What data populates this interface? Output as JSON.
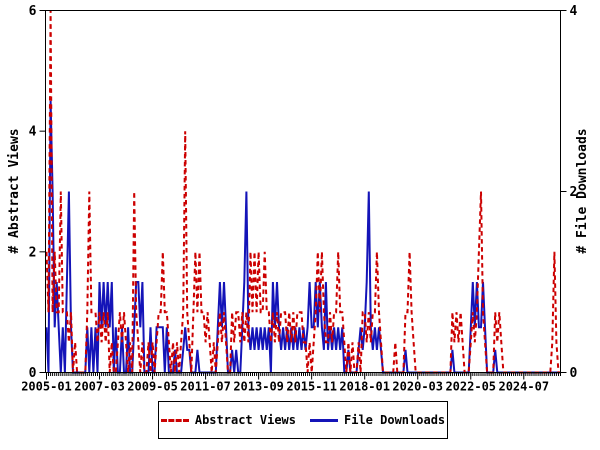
{
  "frame": {
    "background": "#ffffff",
    "axis_color": "#000000"
  },
  "chart_data": {
    "type": "line",
    "title": "",
    "x_axis": {
      "start_month": "2005-01",
      "months_total": 252,
      "major_tick_every": 26,
      "tick_labels": [
        "2005-01",
        "2007-03",
        "2009-05",
        "2011-07",
        "2013-09",
        "2015-11",
        "2018-01",
        "2020-03",
        "2022-05",
        "2024-07"
      ],
      "tick_month_indices": [
        0,
        26,
        52,
        78,
        104,
        130,
        156,
        182,
        208,
        234
      ]
    },
    "left_axis": {
      "label": "# Abstract Views",
      "range": [
        0,
        6
      ],
      "ticks": [
        0,
        2,
        4,
        6
      ]
    },
    "right_axis": {
      "label": "# File Downloads",
      "range": [
        0,
        4
      ],
      "ticks": [
        0,
        2,
        4
      ]
    },
    "series": [
      {
        "name": "Abstract Views",
        "axis": "left",
        "color": "#cc0000",
        "style": "dashed",
        "values": [
          2,
          1,
          6,
          1,
          2,
          1,
          1,
          3,
          1,
          1,
          1,
          0.5,
          1,
          0,
          0.5,
          0,
          0,
          0,
          0,
          0,
          1,
          3,
          1,
          1,
          1,
          0.5,
          1,
          0.5,
          1,
          0.5,
          1,
          0,
          0.5,
          0,
          0,
          0.5,
          1,
          0.5,
          1,
          0.5,
          0,
          0.5,
          0,
          3,
          1,
          0.5,
          0,
          0.5,
          0,
          0,
          0.5,
          0,
          0.5,
          0,
          0.5,
          1,
          1,
          2,
          1,
          1,
          0.5,
          0,
          0.5,
          0,
          0.5,
          0,
          0.5,
          1,
          4,
          1,
          0.5,
          0,
          1,
          2,
          1,
          2,
          1,
          1,
          0.5,
          1,
          0.5,
          0,
          0.5,
          0,
          0.5,
          1,
          0.5,
          1,
          0.5,
          0,
          0,
          1,
          0.5,
          1,
          1,
          0.5,
          1,
          0.5,
          1,
          0.5,
          2,
          1,
          2,
          1,
          2,
          1,
          1,
          2,
          1,
          1,
          0.5,
          1,
          0.5,
          1,
          0.5,
          1,
          1,
          1,
          0.5,
          1,
          0.5,
          1,
          0.5,
          1,
          1,
          1,
          0.5,
          0.5,
          0,
          0.5,
          0,
          0.5,
          1,
          2,
          1,
          2,
          1,
          0.5,
          0.5,
          1,
          0.5,
          1,
          1,
          2,
          1,
          1,
          0.5,
          0,
          0.5,
          0,
          0.5,
          0,
          0,
          0.5,
          0,
          1,
          1,
          0.5,
          1,
          0.5,
          1,
          1,
          2,
          1,
          0.5,
          0,
          0,
          0,
          0,
          0,
          0,
          0.5,
          0,
          0,
          0,
          0,
          1,
          1,
          2,
          1,
          0.5,
          0,
          0,
          0,
          0,
          0,
          0,
          0,
          0,
          0,
          0,
          0,
          0,
          0,
          0,
          0,
          0,
          0,
          0,
          1,
          0.5,
          1,
          0.5,
          1,
          0.5,
          0,
          0,
          0,
          0.5,
          1,
          0.5,
          1,
          2,
          3,
          1,
          0.5,
          0,
          0,
          0,
          0,
          1,
          0.5,
          1,
          0.5,
          0,
          0,
          0,
          0,
          0,
          0,
          0,
          0,
          0,
          0,
          0,
          0,
          0,
          0,
          0,
          0,
          0,
          0,
          0,
          0,
          0,
          0,
          0,
          0,
          0.5,
          2,
          0.5,
          0
        ]
      },
      {
        "name": "File Downloads",
        "axis": "right",
        "color": "#1414b8",
        "style": "solid",
        "values": [
          0.5,
          0,
          3,
          2,
          0.5,
          1,
          0.5,
          0,
          0.5,
          0,
          1,
          2,
          0.5,
          0,
          0,
          0,
          0,
          0,
          0,
          0,
          0.5,
          0,
          0.5,
          0,
          0.5,
          0,
          1,
          0.5,
          1,
          0.5,
          1,
          0.5,
          1,
          0,
          0.5,
          0,
          0,
          0.5,
          0,
          0,
          0.5,
          0,
          0,
          0.5,
          1,
          1,
          0.5,
          1,
          0,
          0,
          0,
          0.5,
          0,
          0,
          0.5,
          0.5,
          0.5,
          0.5,
          0,
          0.5,
          0,
          0,
          0,
          0.25,
          0,
          0,
          0,
          0.25,
          0.5,
          0.25,
          0.25,
          0,
          0,
          0,
          0.25,
          0,
          0,
          0,
          0,
          0,
          0,
          0,
          0,
          0,
          0.5,
          1,
          0.5,
          1,
          0.5,
          0,
          0,
          0.25,
          0,
          0.25,
          0,
          0,
          0.5,
          1,
          2,
          0.5,
          0.25,
          0.5,
          0.25,
          0.5,
          0.25,
          0.5,
          0.25,
          0.5,
          0.25,
          0.5,
          0,
          1,
          0.5,
          1,
          0.5,
          0.25,
          0.5,
          0.25,
          0.5,
          0.25,
          0.5,
          0.25,
          0.5,
          0.25,
          0.5,
          0.25,
          0.5,
          0.25,
          0.5,
          1,
          0.5,
          0.5,
          1,
          0.5,
          1,
          0.5,
          0.25,
          1,
          0.25,
          0.5,
          0.25,
          0.5,
          0.25,
          0.5,
          0.25,
          0.5,
          0,
          0,
          0.25,
          0,
          0,
          0,
          0,
          0.25,
          0.5,
          0.25,
          0.5,
          1,
          2,
          0.5,
          0.25,
          0.5,
          0.25,
          0.5,
          0.25,
          0,
          0,
          0,
          0,
          0,
          0,
          0,
          0,
          0,
          0,
          0,
          0.25,
          0,
          0,
          0,
          0,
          0,
          0,
          0,
          0,
          0,
          0,
          0,
          0,
          0,
          0,
          0,
          0,
          0,
          0,
          0,
          0,
          0,
          0,
          0.25,
          0,
          0,
          0,
          0,
          0,
          0,
          0,
          0,
          0.5,
          1,
          0.5,
          1,
          0.5,
          0.5,
          1,
          0.5,
          0,
          0,
          0,
          0,
          0.25,
          0,
          0,
          0,
          0,
          0,
          0,
          0,
          0,
          0,
          0,
          0,
          0,
          0,
          0,
          0,
          0,
          0,
          0,
          0,
          0,
          0,
          0,
          0,
          0,
          0,
          0,
          0,
          0,
          0,
          0,
          0
        ]
      }
    ],
    "legend": {
      "position": "bottom-center",
      "items": [
        {
          "label": "Abstract Views",
          "color": "#cc0000",
          "style": "dashed"
        },
        {
          "label": "File Downloads",
          "color": "#1414b8",
          "style": "solid"
        }
      ]
    }
  }
}
